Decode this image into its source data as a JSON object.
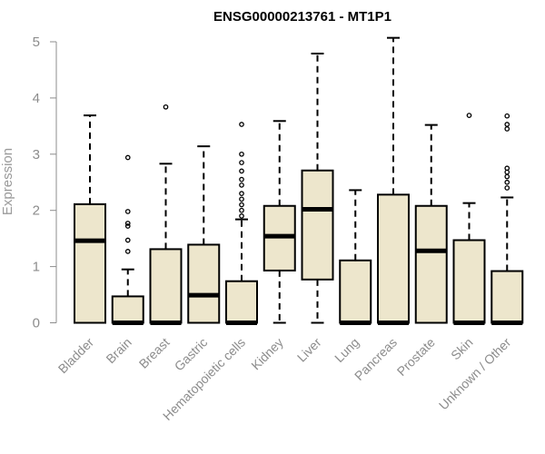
{
  "chart_data": {
    "type": "box",
    "title": "ENSG00000213761 - MT1P1",
    "xlabel": "",
    "ylabel": "Expression",
    "ylim": [
      0,
      5.2
    ],
    "yticks": [
      0,
      1,
      2,
      3,
      4,
      5
    ],
    "grid": false,
    "box_fill": "#ede6cc",
    "categories": [
      "Bladder",
      "Brain",
      "Breast",
      "Gastric",
      "Hematopoietic cells",
      "Kidney",
      "Liver",
      "Lung",
      "Pancreas",
      "Prostate",
      "Skin",
      "Unknown / Other"
    ],
    "boxes": [
      {
        "whisker_low": 0,
        "q1": 0,
        "median": 1.46,
        "q3": 2.11,
        "whisker_high": 3.69,
        "outliers": []
      },
      {
        "whisker_low": 0,
        "q1": 0,
        "median": 0,
        "q3": 0.47,
        "whisker_high": 0.95,
        "outliers": [
          1.27,
          1.47,
          1.72,
          1.77,
          1.98,
          2.94
        ]
      },
      {
        "whisker_low": 0,
        "q1": 0,
        "median": 0,
        "q3": 1.31,
        "whisker_high": 2.83,
        "outliers": [
          3.84
        ]
      },
      {
        "whisker_low": 0,
        "q1": 0,
        "median": 0.49,
        "q3": 1.39,
        "whisker_high": 3.14,
        "outliers": []
      },
      {
        "whisker_low": 0,
        "q1": 0,
        "median": 0,
        "q3": 0.74,
        "whisker_high": 1.84,
        "outliers": [
          1.9,
          2.0,
          2.1,
          2.2,
          2.3,
          2.45,
          2.55,
          2.7,
          2.85,
          3.0,
          3.53
        ]
      },
      {
        "whisker_low": 0,
        "q1": 0.93,
        "median": 1.54,
        "q3": 2.08,
        "whisker_high": 3.59,
        "outliers": []
      },
      {
        "whisker_low": 0,
        "q1": 0.77,
        "median": 2.02,
        "q3": 2.71,
        "whisker_high": 4.79,
        "outliers": []
      },
      {
        "whisker_low": 0,
        "q1": 0,
        "median": 0,
        "q3": 1.11,
        "whisker_high": 2.36,
        "outliers": []
      },
      {
        "whisker_low": 0,
        "q1": 0,
        "median": 0,
        "q3": 2.28,
        "whisker_high": 5.07,
        "outliers": []
      },
      {
        "whisker_low": 0,
        "q1": 0,
        "median": 1.28,
        "q3": 2.08,
        "whisker_high": 3.52,
        "outliers": []
      },
      {
        "whisker_low": 0,
        "q1": 0,
        "median": 0,
        "q3": 1.47,
        "whisker_high": 2.13,
        "outliers": [
          3.69
        ]
      },
      {
        "whisker_low": 0,
        "q1": 0,
        "median": 0,
        "q3": 0.92,
        "whisker_high": 2.23,
        "outliers": [
          2.4,
          2.5,
          2.6,
          2.68,
          2.75,
          3.45,
          3.53,
          3.68
        ]
      }
    ]
  }
}
